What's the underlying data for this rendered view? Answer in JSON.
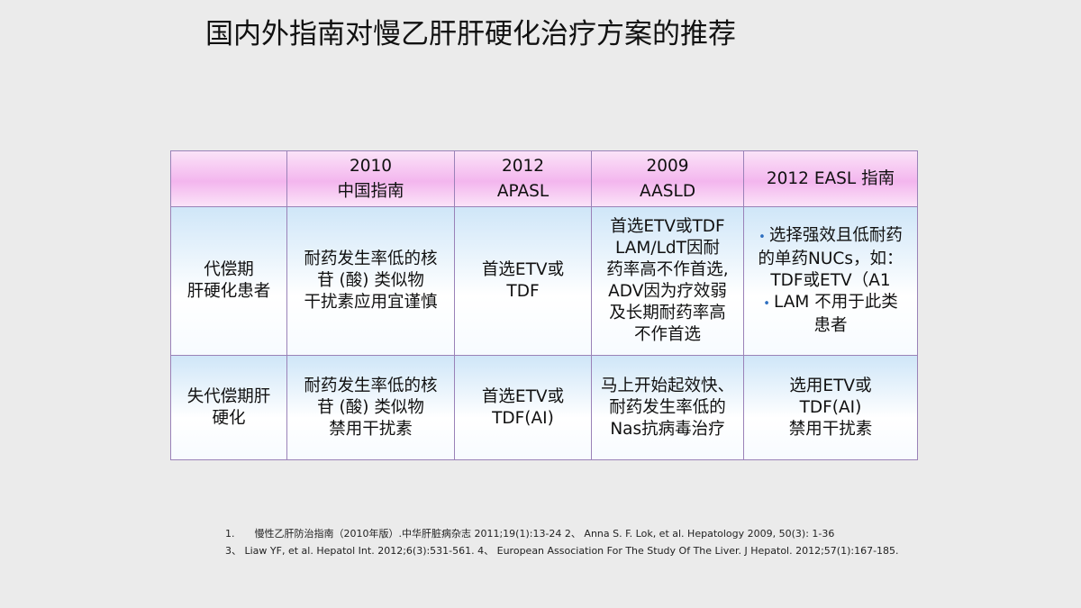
{
  "title": "国内外指南对慢乙肝肝硬化治疗方案的推荐",
  "table": {
    "header": [
      [
        "2010",
        "中国指南"
      ],
      [
        "2012",
        "APASL"
      ],
      [
        "2009",
        "AASLD"
      ],
      [
        "2012 EASL 指南"
      ]
    ],
    "rows": [
      {
        "label": [
          "代偿期",
          "肝硬化患者"
        ],
        "cells": [
          [
            "耐药发生率低的核",
            "苷 (酸) 类似物",
            "干扰素应用宜谨慎"
          ],
          [
            "首选ETV或",
            "TDF"
          ],
          [
            "首选ETV或TDF",
            "LAM/LdT因耐",
            "药率高不作首选,",
            "ADV因为疗效弱",
            "及长期耐药率高",
            "不作首选"
          ],
          [
            [
              "选择强效且低耐药",
              "的单药NUCs，如：",
              "TDF或ETV（A1"
            ],
            [
              "LAM 不用于此类",
              "患者"
            ]
          ]
        ]
      },
      {
        "label": [
          "失代偿期肝",
          "硬化"
        ],
        "cells": [
          [
            "耐药发生率低的核",
            "苷 (酸) 类似物",
            "禁用干扰素"
          ],
          [
            "首选ETV或",
            "TDF(AI)"
          ],
          [
            "马上开始起效快、",
            "耐药发生率低的",
            "Nas抗病毒治疗"
          ],
          [
            "选用ETV或",
            "TDF(AI)",
            "禁用干扰素"
          ]
        ]
      }
    ]
  },
  "references": [
    "1.　　慢性乙肝防治指南（2010年版）.中华肝脏病杂志 2011;19(1):13-24 2、 Anna S. F. Lok, et al. Hepatology  2009, 50(3): 1-36",
    "3、 Liaw YF, et al. Hepatol Int. 2012;6(3):531-561. 4、 European Association For The Study Of The Liver. J Hepatol. 2012;57(1):167-185."
  ]
}
